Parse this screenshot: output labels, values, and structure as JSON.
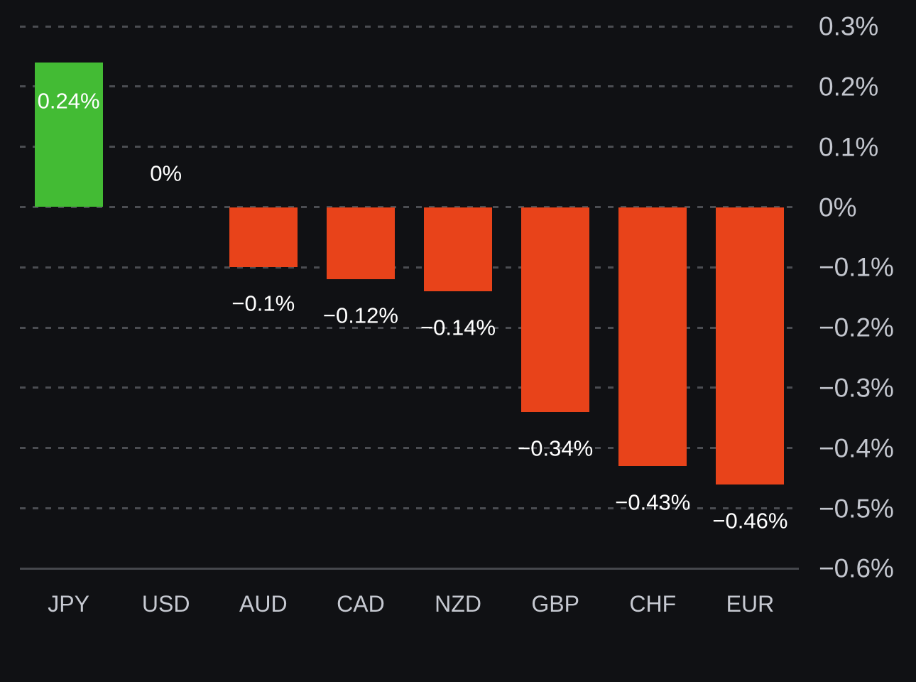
{
  "chart_data": {
    "type": "bar",
    "categories": [
      "JPY",
      "USD",
      "AUD",
      "CAD",
      "NZD",
      "GBP",
      "CHF",
      "EUR"
    ],
    "values": [
      0.24,
      0,
      -0.1,
      -0.12,
      -0.14,
      -0.34,
      -0.43,
      -0.46
    ],
    "value_labels": [
      "0.24%",
      "0%",
      "-0.1%",
      "-0.12%",
      "-0.14%",
      "-0.34%",
      "-0.43%",
      "-0.46%"
    ],
    "title": "",
    "xlabel": "",
    "ylabel": "",
    "ylim": [
      -0.6,
      0.3
    ],
    "yticks": [
      0.3,
      0.2,
      0.1,
      0,
      -0.1,
      -0.2,
      -0.3,
      -0.4,
      -0.5,
      -0.6
    ],
    "ytick_labels": [
      "0.3%",
      "0.2%",
      "0.1%",
      "0%",
      "-0.1%",
      "-0.2%",
      "-0.3%",
      "-0.4%",
      "-0.5%",
      "-0.6%"
    ],
    "grid": "horizontal-dashed, bottom axis solid",
    "legend": "none",
    "colors": {
      "positive_bar": "#43bb34",
      "negative_bar": "#e8431a",
      "background": "#101114",
      "grid_line": "#4b4d52",
      "axis_line": "#46484d",
      "ytick_text": "#c3c6ce",
      "category_text": "#c6c9d1",
      "value_text": "#ffffff"
    }
  }
}
